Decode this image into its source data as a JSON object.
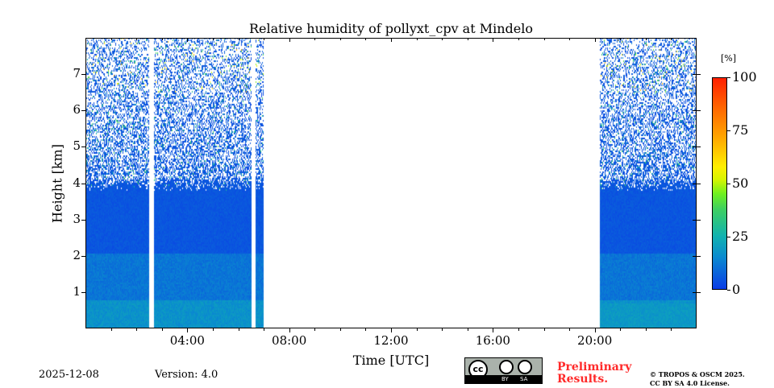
{
  "chart_data": {
    "type": "heatmap",
    "title": "Relative humidity of pollyxt_cpv at Mindelo",
    "xlabel": "Time [UTC]",
    "ylabel": "Height [km]",
    "xlim": [
      0,
      24
    ],
    "ylim": [
      0,
      8
    ],
    "xticks": [
      {
        "v": 4,
        "label": "04:00"
      },
      {
        "v": 8,
        "label": "08:00"
      },
      {
        "v": 12,
        "label": "12:00"
      },
      {
        "v": 16,
        "label": "16:00"
      },
      {
        "v": 20,
        "label": "20:00"
      }
    ],
    "yticks": [
      {
        "v": 1,
        "label": "1"
      },
      {
        "v": 2,
        "label": "2"
      },
      {
        "v": 3,
        "label": "3"
      },
      {
        "v": 4,
        "label": "4"
      },
      {
        "v": 5,
        "label": "5"
      },
      {
        "v": 6,
        "label": "6"
      },
      {
        "v": 7,
        "label": "7"
      }
    ],
    "data_segments_hours": [
      [
        0,
        2.5
      ],
      [
        2.69,
        6.52
      ],
      [
        6.68,
        7.0
      ],
      [
        20.2,
        24
      ]
    ],
    "colorbar": {
      "label": "[%]",
      "range": [
        0,
        100
      ],
      "ticks": [
        {
          "v": 0,
          "label": "0"
        },
        {
          "v": 25,
          "label": "25"
        },
        {
          "v": 50,
          "label": "50"
        },
        {
          "v": 75,
          "label": "75"
        },
        {
          "v": 100,
          "label": "100"
        }
      ]
    },
    "dense_layer_top_km": 4.0
  },
  "footer": {
    "date": "2025-12-08",
    "version": "Version: 4.0",
    "preliminary": "Preliminary",
    "results": "Results.",
    "copyright": "© TROPOS & OSCM 2025.",
    "license": "CC BY SA 4.0 License.",
    "cc_by": "BY",
    "cc_sa": "SA",
    "cc": "cc"
  }
}
